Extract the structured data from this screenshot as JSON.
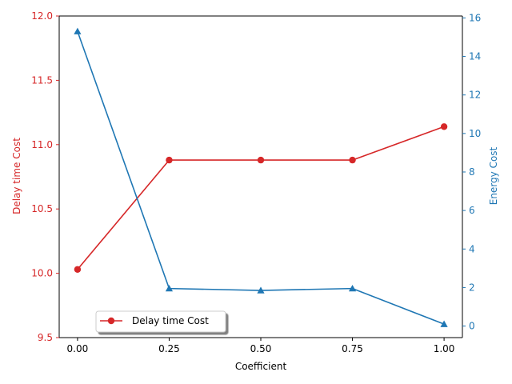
{
  "chart_data": {
    "type": "line",
    "xlabel": "Coefficient",
    "x": [
      0.0,
      0.25,
      0.5,
      0.75,
      1.0
    ],
    "x_ticks": [
      "0.00",
      "0.25",
      "0.50",
      "0.75",
      "1.00"
    ],
    "xlim": [
      -0.05,
      1.05
    ],
    "left_axis": {
      "label": "Delay time Cost",
      "color": "#d62728",
      "ylim": [
        9.5,
        12.0
      ],
      "ticks": [
        "9.5",
        "10.0",
        "10.5",
        "11.0",
        "11.5",
        "12.0"
      ]
    },
    "right_axis": {
      "label": "Energy Cost",
      "color": "#1f77b4",
      "ylim": [
        -0.6,
        16.1
      ],
      "ticks": [
        "0",
        "2",
        "4",
        "6",
        "8",
        "10",
        "12",
        "14",
        "16"
      ]
    },
    "series": [
      {
        "name": "Delay time Cost",
        "axis": "left",
        "marker": "circle",
        "color": "#d62728",
        "values": [
          10.03,
          10.88,
          10.88,
          10.88,
          11.14
        ]
      },
      {
        "axis": "right",
        "marker": "triangle",
        "color": "#1f77b4",
        "values": [
          15.3,
          1.95,
          1.85,
          1.95,
          0.1
        ]
      }
    ],
    "legend": {
      "placement": "lower-left",
      "entries": [
        "Delay time Cost"
      ]
    }
  }
}
